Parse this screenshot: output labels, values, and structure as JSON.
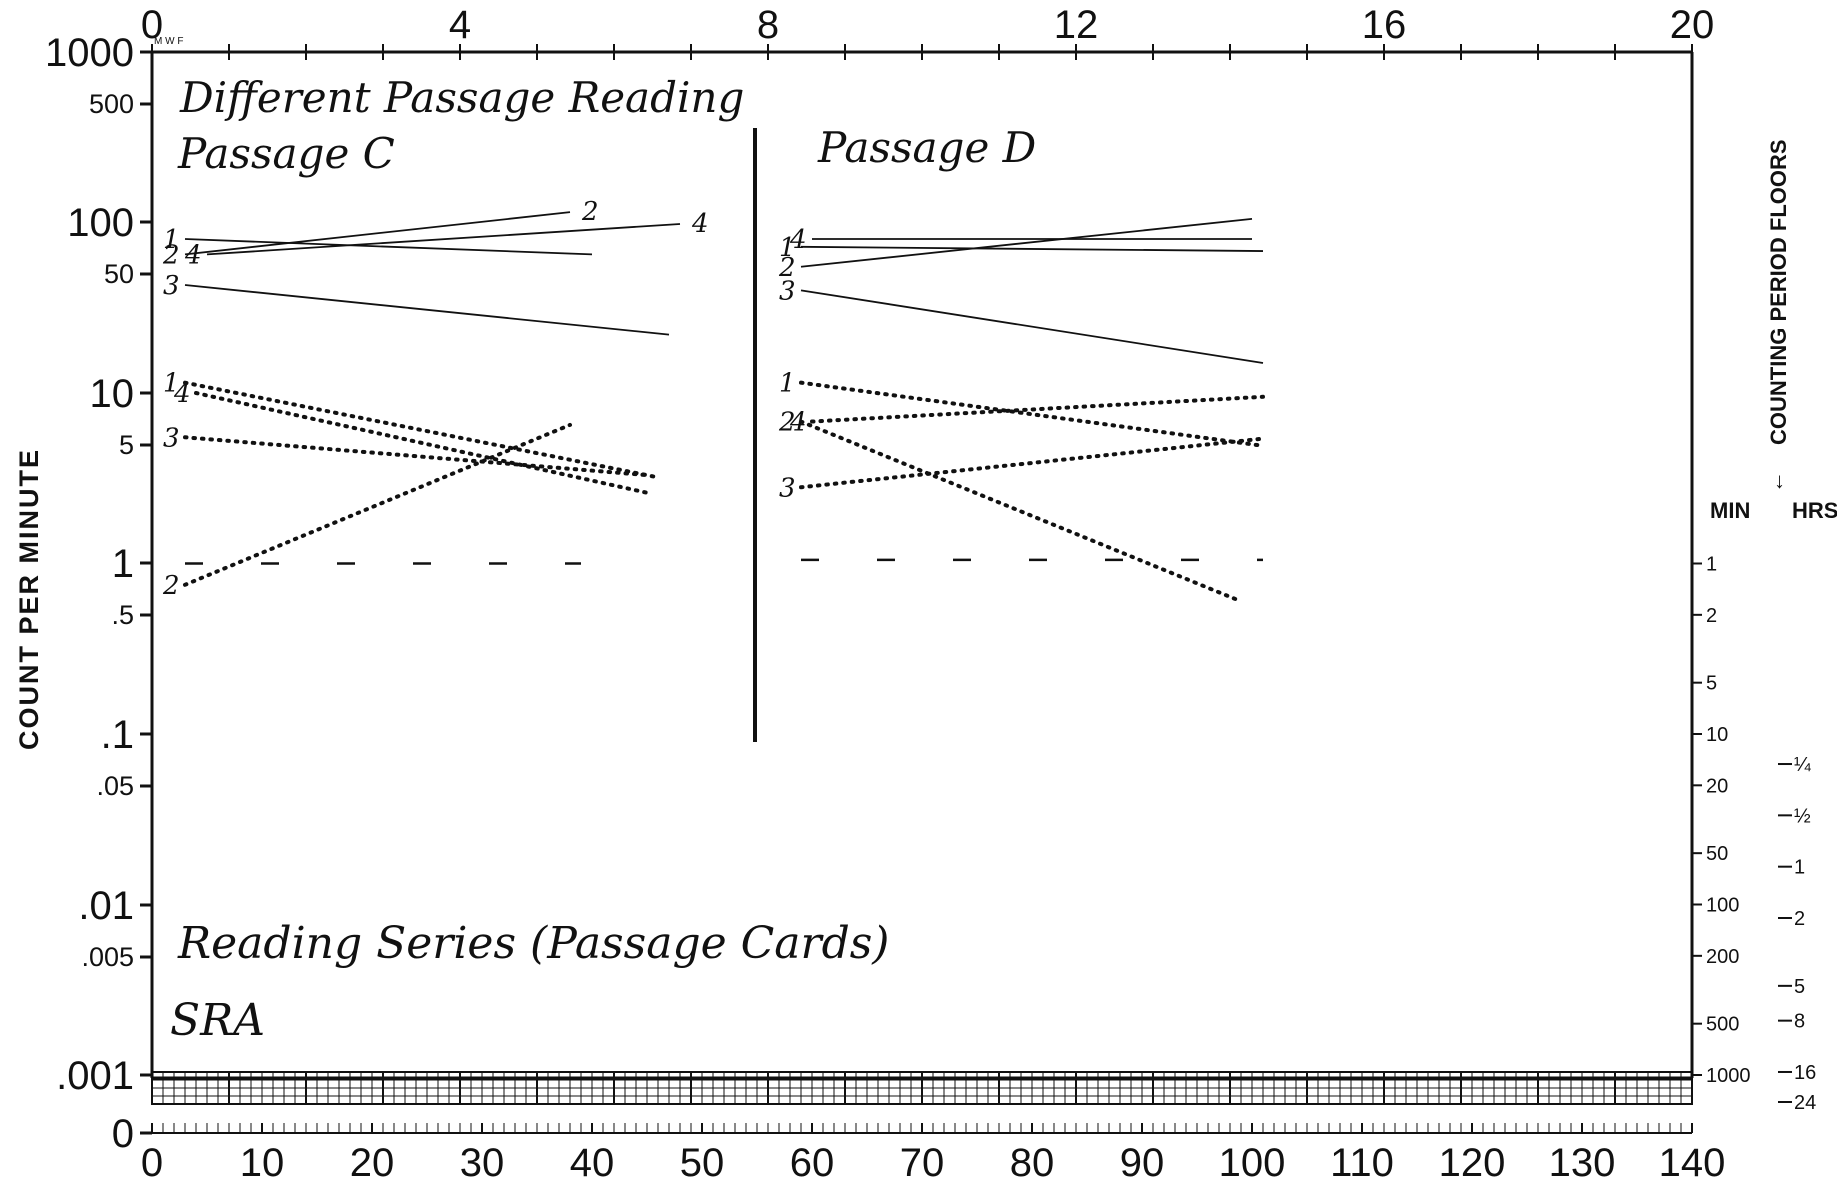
{
  "chart_data": {
    "type": "line",
    "y_axis": {
      "title": "COUNT PER MINUTE",
      "scale": "log",
      "ticks": [
        "1000",
        "500",
        "100",
        "50",
        "10",
        "5",
        "1",
        ".5",
        ".1",
        ".05",
        ".01",
        ".005",
        ".001",
        "0"
      ]
    },
    "x_axis_top": {
      "ticks": [
        "0",
        "4",
        "8",
        "12",
        "16",
        "20"
      ],
      "sub_label": "M W F"
    },
    "x_axis_bottom": {
      "ticks": [
        "0",
        "10",
        "20",
        "30",
        "40",
        "50",
        "60",
        "70",
        "80",
        "90",
        "100",
        "110",
        "120",
        "130",
        "140"
      ]
    },
    "right_axis": {
      "title": "COUNTING PERIOD FLOORS",
      "min_header": "MIN",
      "hrs_header": "HRS",
      "min_ticks": [
        "1",
        "2",
        "5",
        "10",
        "20",
        "50",
        "100",
        "200",
        "500",
        "1000"
      ],
      "hrs_ticks": [
        "¼",
        "½",
        "1",
        "2",
        "5",
        "8",
        "16",
        "24"
      ]
    },
    "annotations": {
      "title_line1": "Different Passage Reading",
      "title_line2": "Passage C",
      "phase2_label": "Passage D",
      "footer_line1": "Reading Series (Passage Cards)",
      "footer_line2": "SRA"
    },
    "phases": [
      {
        "name": "Passage C",
        "series": [
          {
            "label": "1",
            "kind": "correct",
            "x": [
              3,
              40
            ],
            "y": [
              80,
              65
            ],
            "end_label": ""
          },
          {
            "label": "2",
            "kind": "correct",
            "x": [
              3,
              38
            ],
            "y": [
              65,
              115
            ],
            "end_label": "2"
          },
          {
            "label": "4",
            "kind": "correct",
            "x": [
              5,
              48
            ],
            "y": [
              65,
              98
            ],
            "end_label": "4"
          },
          {
            "label": "3",
            "kind": "correct",
            "x": [
              3,
              47
            ],
            "y": [
              43,
              22
            ],
            "end_label": ""
          },
          {
            "label": "1",
            "kind": "error",
            "x": [
              3,
              46
            ],
            "y": [
              11.5,
              3.2
            ],
            "end_label": ""
          },
          {
            "label": "4",
            "kind": "error",
            "x": [
              4,
              45
            ],
            "y": [
              10,
              2.6
            ],
            "end_label": ""
          },
          {
            "label": "3",
            "kind": "error",
            "x": [
              3,
              45
            ],
            "y": [
              5.5,
              3.3
            ],
            "end_label": ""
          },
          {
            "label": "2",
            "kind": "error",
            "x": [
              3,
              38
            ],
            "y": [
              0.75,
              6.5
            ],
            "end_label": ""
          },
          {
            "label": "",
            "kind": "floor",
            "x": [
              3,
              39
            ],
            "y": [
              1,
              1
            ],
            "end_label": ""
          }
        ]
      },
      {
        "name": "Passage D",
        "series": [
          {
            "label": "1",
            "kind": "correct",
            "x": [
              59,
              101
            ],
            "y": [
              72,
              68
            ],
            "end_label": ""
          },
          {
            "label": "4",
            "kind": "correct",
            "x": [
              60,
              100
            ],
            "y": [
              80,
              80
            ],
            "end_label": ""
          },
          {
            "label": "2",
            "kind": "correct",
            "x": [
              59,
              100
            ],
            "y": [
              55,
              105
            ],
            "end_label": ""
          },
          {
            "label": "3",
            "kind": "correct",
            "x": [
              59,
              101
            ],
            "y": [
              40,
              15
            ],
            "end_label": ""
          },
          {
            "label": "1",
            "kind": "error",
            "x": [
              59,
              101
            ],
            "y": [
              11.5,
              4.9
            ],
            "end_label": ""
          },
          {
            "label": "4",
            "kind": "error",
            "x": [
              60,
              101
            ],
            "y": [
              6.8,
              9.5
            ],
            "end_label": ""
          },
          {
            "label": "2",
            "kind": "error",
            "x": [
              59,
              99
            ],
            "y": [
              6.8,
              0.6
            ],
            "end_label": ""
          },
          {
            "label": "3",
            "kind": "error",
            "x": [
              59,
              101
            ],
            "y": [
              2.8,
              5.4
            ],
            "end_label": ""
          },
          {
            "label": "",
            "kind": "floor",
            "x": [
              59,
              101
            ],
            "y": [
              1.05,
              1.05
            ],
            "end_label": ""
          }
        ]
      }
    ]
  }
}
